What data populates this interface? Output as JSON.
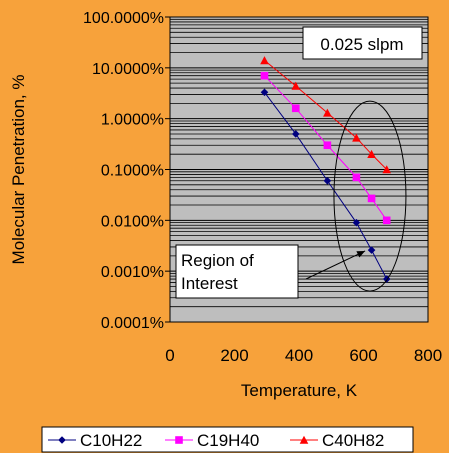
{
  "chart_data": {
    "type": "scatter",
    "title": "",
    "xlabel": "Temperature, K",
    "ylabel": "Molecular Penetration, %",
    "xlim": [
      0,
      800
    ],
    "ylim": [
      0.0001,
      100
    ],
    "y_scale": "log",
    "x_ticks": [
      "0",
      "200",
      "400",
      "600",
      "800"
    ],
    "y_ticks": [
      "100.0000%",
      "10.0000%",
      "1.0000%",
      "0.1000%",
      "0.0100%",
      "0.0010%",
      "0.0001%"
    ],
    "grid": "horizontal",
    "plot_background": "#BEBEBE",
    "legend_position": "bottom",
    "series": [
      {
        "name": "C10H22",
        "color": "#000080",
        "marker": "diamond",
        "x": [
          293,
          390,
          488,
          578,
          625,
          672
        ],
        "y": [
          3.3,
          0.5,
          0.06,
          0.009,
          0.0026,
          0.0007
        ]
      },
      {
        "name": "C19H40",
        "color": "#FF00FF",
        "marker": "square",
        "x": [
          293,
          390,
          488,
          578,
          625,
          672
        ],
        "y": [
          7,
          1.6,
          0.3,
          0.07,
          0.027,
          0.01
        ]
      },
      {
        "name": "C40H82",
        "color": "#FF0000",
        "marker": "triangle",
        "x": [
          293,
          390,
          488,
          578,
          625,
          672
        ],
        "y": [
          14,
          4.4,
          1.3,
          0.42,
          0.2,
          0.1
        ]
      }
    ],
    "annotations": {
      "condition_label": "0.025 slpm",
      "region_label_line1": "Region of",
      "region_label_line2": "Interest",
      "region_ellipse_center": [
        620,
        0.03
      ],
      "arrow_target": [
        605,
        0.0025
      ]
    }
  }
}
